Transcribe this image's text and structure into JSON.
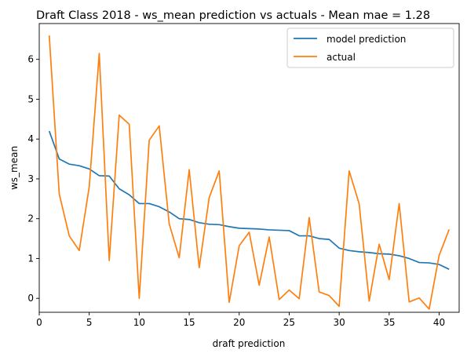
{
  "chart_data": {
    "type": "line",
    "title": "Draft Class 2018 - ws_mean prediction vs actuals - Mean mae = 1.28",
    "xlabel": "draft prediction",
    "ylabel": "ws_mean",
    "xlim": [
      0.0,
      42.0
    ],
    "ylim": [
      -0.35,
      6.9
    ],
    "xticks": [
      0,
      5,
      10,
      15,
      20,
      25,
      30,
      35,
      40
    ],
    "yticks": [
      0,
      1,
      2,
      3,
      4,
      5,
      6
    ],
    "grid": false,
    "legend_position": "top-right",
    "x": [
      1,
      2,
      3,
      4,
      5,
      6,
      7,
      8,
      9,
      10,
      11,
      12,
      13,
      14,
      15,
      16,
      17,
      18,
      19,
      20,
      21,
      22,
      23,
      24,
      25,
      26,
      27,
      28,
      29,
      30,
      31,
      32,
      33,
      34,
      35,
      36,
      37,
      38,
      39,
      40,
      41
    ],
    "series": [
      {
        "name": "model prediction",
        "color": "#1f77b4",
        "values": [
          4.2,
          3.5,
          3.37,
          3.33,
          3.25,
          3.08,
          3.07,
          2.75,
          2.6,
          2.38,
          2.38,
          2.3,
          2.17,
          2.0,
          1.98,
          1.9,
          1.86,
          1.85,
          1.8,
          1.76,
          1.75,
          1.74,
          1.72,
          1.71,
          1.7,
          1.57,
          1.57,
          1.5,
          1.48,
          1.26,
          1.2,
          1.17,
          1.15,
          1.12,
          1.11,
          1.07,
          1.0,
          0.9,
          0.89,
          0.85,
          0.73
        ]
      },
      {
        "name": "actual",
        "color": "#ff7f0e",
        "values": [
          6.6,
          2.62,
          1.57,
          1.2,
          2.8,
          6.15,
          0.95,
          4.6,
          4.37,
          0.0,
          3.97,
          4.33,
          1.87,
          1.02,
          3.23,
          0.77,
          2.53,
          3.2,
          -0.1,
          1.32,
          1.66,
          0.33,
          1.54,
          -0.03,
          0.21,
          -0.01,
          2.03,
          0.16,
          0.07,
          -0.2,
          3.2,
          2.37,
          -0.07,
          1.36,
          0.47,
          2.38,
          -0.09,
          0.01,
          -0.27,
          1.08,
          1.73
        ]
      }
    ]
  }
}
